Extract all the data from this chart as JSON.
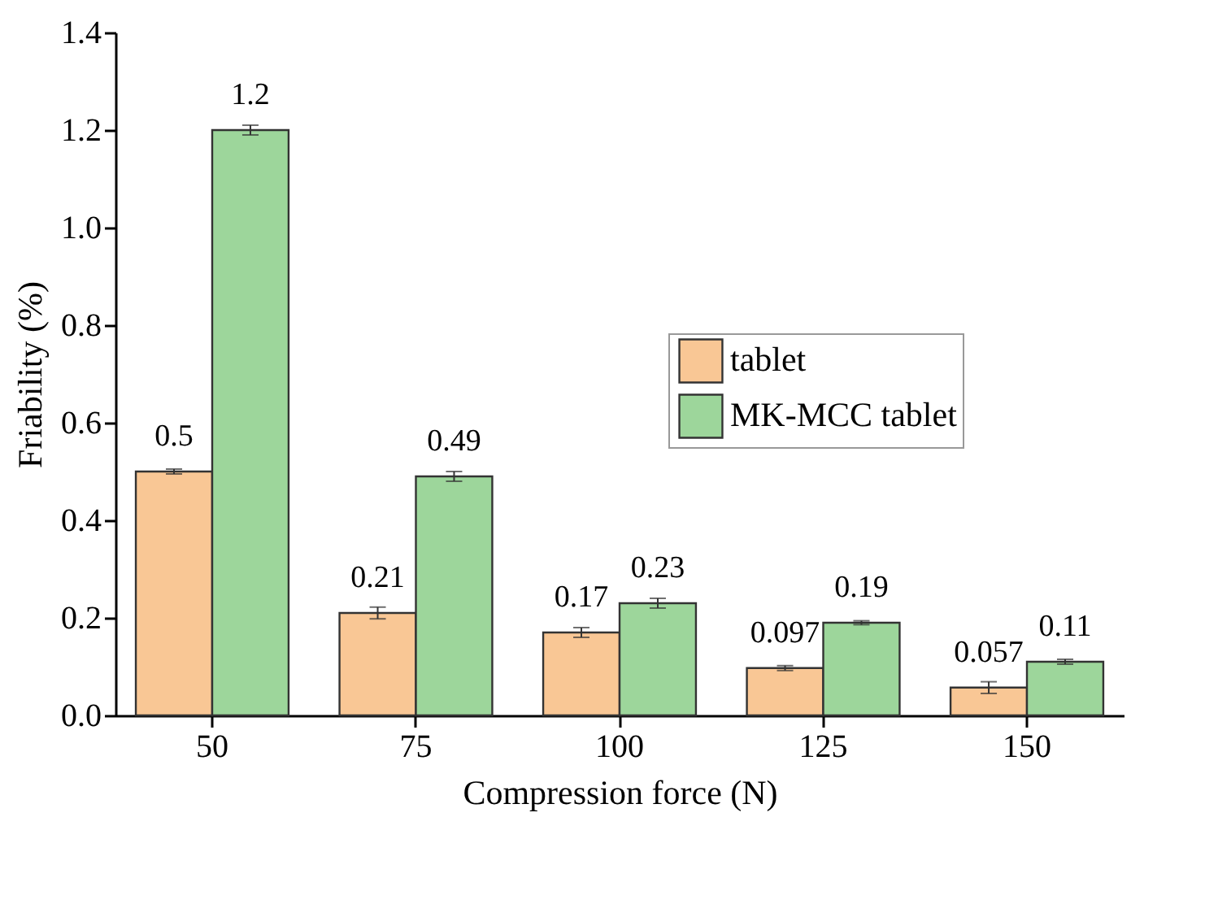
{
  "chart_data": {
    "type": "bar",
    "xlabel": "Compression force (N)",
    "ylabel": "Friability (%)",
    "categories": [
      "50",
      "75",
      "100",
      "125",
      "150"
    ],
    "series": [
      {
        "name": "tablet",
        "color": "#f9c795",
        "values": [
          0.5,
          0.21,
          0.17,
          0.097,
          0.057
        ],
        "errors": [
          0.005,
          0.012,
          0.01,
          0.005,
          0.012
        ]
      },
      {
        "name": "MK-MCC tablet",
        "color": "#9dd69b",
        "values": [
          1.2,
          0.49,
          0.23,
          0.19,
          0.11
        ],
        "errors": [
          0.01,
          0.01,
          0.01,
          0.004,
          0.005
        ]
      }
    ],
    "ylim": [
      0,
      1.4
    ],
    "yticks": [
      {
        "value": 0,
        "label": "0.0"
      },
      0.2,
      0.4,
      0.6,
      0.8,
      {
        "value": 1,
        "label": "1.0"
      },
      1.2,
      1.4
    ],
    "data_labels": true,
    "legend": "right",
    "grid": false
  }
}
